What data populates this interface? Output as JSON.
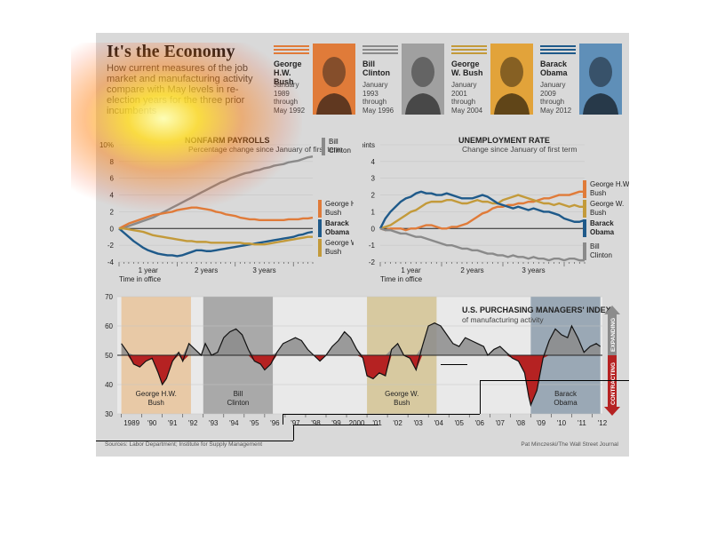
{
  "header": {
    "title": "It's the Economy",
    "subtitle": "How current measures of the job market and manufacturing activity compare with May levels in re-election years for the three prior incumbents"
  },
  "presidents": [
    {
      "name": "George H.W. Bush",
      "dates": "January 1989 through May 1992",
      "color": "#e07b39"
    },
    {
      "name": "Bill Clinton",
      "dates": "January 1993 through May 1996",
      "color": "#8a8a8a"
    },
    {
      "name": "George W. Bush",
      "dates": "January 2001 through May 2004",
      "color": "#c39a3a"
    },
    {
      "name": "Barack Obama",
      "dates": "January 2009 through May 2012",
      "color": "#1f5a8a"
    }
  ],
  "colors": {
    "ghwbush": "#e07b39",
    "clinton": "#8a8a8a",
    "gwbush": "#c39a3a",
    "obama": "#1f5a8a",
    "contract": "#b52222",
    "expand": "#8c8c8c"
  },
  "footer": {
    "sources": "Sources: Labor Department; Institute for Supply Management",
    "credit": "Pat Minczeski/The Wall Street Journal"
  },
  "chart_data": [
    {
      "type": "line",
      "title": "NONFARM PAYROLLS",
      "subtitle": "Percentage change since January of first term",
      "xlabel": "Time in office",
      "x_ticks": [
        "1 year",
        "2 years",
        "3 years"
      ],
      "y_ticks": [
        "10%",
        "8",
        "6",
        "4",
        "2",
        "0",
        "-2",
        "-4"
      ],
      "ylim": [
        -4,
        10
      ],
      "xlim": [
        0,
        40
      ],
      "series": [
        {
          "name": "Bill Clinton",
          "values": [
            0,
            0.1,
            0.3,
            0.5,
            0.7,
            0.9,
            1.1,
            1.3,
            1.6,
            1.9,
            2.2,
            2.5,
            2.8,
            3.1,
            3.4,
            3.7,
            4,
            4.3,
            4.6,
            4.9,
            5.2,
            5.5,
            5.7,
            6,
            6.2,
            6.4,
            6.6,
            6.7,
            6.9,
            7,
            7.2,
            7.3,
            7.5,
            7.6,
            7.7,
            7.9,
            8,
            8.1,
            8.3,
            8.5,
            8.6
          ]
        },
        {
          "name": "George H.W. Bush",
          "values": [
            0,
            0.3,
            0.6,
            0.8,
            1,
            1.2,
            1.4,
            1.6,
            1.7,
            1.8,
            1.9,
            2,
            2.2,
            2.3,
            2.4,
            2.5,
            2.5,
            2.4,
            2.3,
            2.2,
            2,
            1.9,
            1.7,
            1.6,
            1.5,
            1.3,
            1.2,
            1.1,
            1.1,
            1,
            1,
            1,
            1,
            1,
            1,
            1.1,
            1.1,
            1.1,
            1.2,
            1.2,
            1.3
          ]
        },
        {
          "name": "Barack Obama",
          "values": [
            0,
            -0.5,
            -1,
            -1.5,
            -1.9,
            -2.3,
            -2.6,
            -2.8,
            -3,
            -3.1,
            -3.2,
            -3.2,
            -3.3,
            -3.2,
            -3,
            -2.8,
            -2.6,
            -2.6,
            -2.7,
            -2.7,
            -2.6,
            -2.5,
            -2.4,
            -2.3,
            -2.2,
            -2.1,
            -2,
            -1.9,
            -1.8,
            -1.7,
            -1.6,
            -1.5,
            -1.4,
            -1.3,
            -1.2,
            -1.1,
            -1,
            -0.8,
            -0.7,
            -0.5,
            -0.4
          ]
        },
        {
          "name": "George W. Bush",
          "values": [
            0,
            0,
            -0.1,
            -0.2,
            -0.3,
            -0.4,
            -0.6,
            -0.8,
            -0.9,
            -1,
            -1.1,
            -1.2,
            -1.3,
            -1.4,
            -1.5,
            -1.5,
            -1.6,
            -1.6,
            -1.6,
            -1.7,
            -1.7,
            -1.7,
            -1.7,
            -1.7,
            -1.7,
            -1.7,
            -1.8,
            -1.8,
            -1.9,
            -1.9,
            -1.9,
            -1.8,
            -1.7,
            -1.6,
            -1.5,
            -1.4,
            -1.3,
            -1.2,
            -1.1,
            -1,
            -1
          ]
        }
      ]
    },
    {
      "type": "line",
      "title": "UNEMPLOYMENT RATE",
      "subtitle": "Change since January of first term",
      "xlabel": "Time in office",
      "x_ticks": [
        "1 year",
        "2 years",
        "3 years"
      ],
      "y_ticks": [
        "5 percentage points",
        "4",
        "3",
        "2",
        "1",
        "0",
        "-1",
        "-2"
      ],
      "ylim": [
        -2,
        5
      ],
      "xlim": [
        0,
        40
      ],
      "series": [
        {
          "name": "George H.W. Bush",
          "values": [
            0,
            -0.1,
            0,
            0,
            0,
            -0.1,
            0,
            0,
            0.1,
            0.2,
            0.2,
            0.1,
            0,
            0,
            0.1,
            0.1,
            0.2,
            0.3,
            0.5,
            0.7,
            0.9,
            1,
            1.2,
            1.3,
            1.3,
            1.4,
            1.4,
            1.5,
            1.5,
            1.6,
            1.6,
            1.7,
            1.8,
            1.8,
            1.9,
            2,
            2,
            2,
            2.1,
            2.2,
            2.2
          ]
        },
        {
          "name": "George W. Bush",
          "values": [
            0,
            0.1,
            0.2,
            0.4,
            0.6,
            0.8,
            1,
            1.1,
            1.3,
            1.5,
            1.6,
            1.6,
            1.6,
            1.7,
            1.7,
            1.6,
            1.5,
            1.5,
            1.6,
            1.7,
            1.6,
            1.6,
            1.5,
            1.5,
            1.7,
            1.8,
            1.9,
            2,
            1.9,
            1.8,
            1.7,
            1.6,
            1.5,
            1.5,
            1.4,
            1.5,
            1.4,
            1.3,
            1.4,
            1.3,
            1.3
          ]
        },
        {
          "name": "Barack Obama",
          "values": [
            0,
            0.6,
            1,
            1.3,
            1.6,
            1.8,
            1.9,
            2.1,
            2.2,
            2.1,
            2.1,
            2,
            2,
            2.1,
            2,
            1.9,
            1.8,
            1.8,
            1.8,
            1.9,
            2,
            1.9,
            1.7,
            1.5,
            1.4,
            1.3,
            1.2,
            1.3,
            1.2,
            1.1,
            1.2,
            1.1,
            1,
            1,
            0.9,
            0.8,
            0.6,
            0.5,
            0.4,
            0.4,
            0.5
          ]
        },
        {
          "name": "Bill Clinton",
          "values": [
            0,
            -0.1,
            -0.1,
            -0.2,
            -0.3,
            -0.3,
            -0.4,
            -0.5,
            -0.5,
            -0.6,
            -0.7,
            -0.8,
            -0.9,
            -1,
            -1,
            -1.1,
            -1.2,
            -1.2,
            -1.3,
            -1.3,
            -1.4,
            -1.5,
            -1.5,
            -1.6,
            -1.6,
            -1.7,
            -1.6,
            -1.7,
            -1.7,
            -1.8,
            -1.7,
            -1.8,
            -1.8,
            -1.9,
            -1.8,
            -1.8,
            -1.9,
            -1.8,
            -1.8,
            -1.9,
            -1.9
          ]
        }
      ]
    },
    {
      "type": "area",
      "title": "U.S. PURCHASING MANAGERS' INDEX",
      "subtitle": "of manufacturing activity",
      "baseline": 50,
      "ylim": [
        30,
        70
      ],
      "y_ticks": [
        70,
        60,
        50,
        40,
        30
      ],
      "x_labels": [
        "1989",
        "'90",
        "'91",
        "'92",
        "'93",
        "'94",
        "'95",
        "'96",
        "'97",
        "'98",
        "'99",
        "2000",
        "'01",
        "'02",
        "'03",
        "'04",
        "'05",
        "'06",
        "'07",
        "'08",
        "'09",
        "'10",
        "'11",
        "'12"
      ],
      "x_years": [
        1989,
        1990,
        1991,
        1992,
        1993,
        1994,
        1995,
        1996,
        1997,
        1998,
        1999,
        2000,
        2001,
        2002,
        2003,
        2004,
        2005,
        2006,
        2007,
        2008,
        2009,
        2010,
        2011,
        2012
      ],
      "shaded_terms": [
        {
          "label": "George H.W. Bush",
          "start": 1989.0,
          "end": 1992.4,
          "color": "#e8c9a6"
        },
        {
          "label": "Bill Clinton",
          "start": 1993.0,
          "end": 1996.4,
          "color": "#a9a9a9"
        },
        {
          "label": "George W. Bush",
          "start": 2001.0,
          "end": 2004.4,
          "color": "#d7c9a0"
        },
        {
          "label": "Barack Obama",
          "start": 2009.0,
          "end": 2012.4,
          "color": "#9aa8b5"
        }
      ],
      "side_labels": {
        "expanding": "EXPANDING",
        "contracting": "CONTRACTING"
      },
      "points": [
        [
          1989.0,
          54
        ],
        [
          1989.3,
          51
        ],
        [
          1989.6,
          47
        ],
        [
          1989.9,
          46
        ],
        [
          1990.2,
          48
        ],
        [
          1990.5,
          49
        ],
        [
          1990.8,
          44
        ],
        [
          1991.0,
          40
        ],
        [
          1991.2,
          42
        ],
        [
          1991.5,
          48
        ],
        [
          1991.8,
          51
        ],
        [
          1992.0,
          48
        ],
        [
          1992.3,
          54
        ],
        [
          1992.6,
          52
        ],
        [
          1992.9,
          50
        ],
        [
          1993.1,
          54
        ],
        [
          1993.4,
          50
        ],
        [
          1993.7,
          51
        ],
        [
          1994.0,
          56
        ],
        [
          1994.3,
          58
        ],
        [
          1994.6,
          59
        ],
        [
          1994.9,
          57
        ],
        [
          1995.2,
          52
        ],
        [
          1995.5,
          48
        ],
        [
          1995.8,
          47
        ],
        [
          1996.0,
          45
        ],
        [
          1996.3,
          47
        ],
        [
          1996.6,
          51
        ],
        [
          1996.9,
          54
        ],
        [
          1997.2,
          55
        ],
        [
          1997.5,
          56
        ],
        [
          1997.8,
          55
        ],
        [
          1998.1,
          52
        ],
        [
          1998.4,
          50
        ],
        [
          1998.7,
          48
        ],
        [
          1999.0,
          50
        ],
        [
          1999.3,
          53
        ],
        [
          1999.6,
          55
        ],
        [
          1999.9,
          58
        ],
        [
          2000.2,
          56
        ],
        [
          2000.5,
          52
        ],
        [
          2000.8,
          49
        ],
        [
          2001.0,
          43
        ],
        [
          2001.3,
          42
        ],
        [
          2001.6,
          44
        ],
        [
          2001.9,
          43
        ],
        [
          2002.2,
          52
        ],
        [
          2002.5,
          54
        ],
        [
          2002.8,
          50
        ],
        [
          2003.1,
          49
        ],
        [
          2003.4,
          45
        ],
        [
          2003.7,
          53
        ],
        [
          2004.0,
          60
        ],
        [
          2004.3,
          61
        ],
        [
          2004.6,
          60
        ],
        [
          2004.9,
          57
        ],
        [
          2005.2,
          54
        ],
        [
          2005.5,
          53
        ],
        [
          2005.8,
          56
        ],
        [
          2006.1,
          55
        ],
        [
          2006.4,
          54
        ],
        [
          2006.7,
          53
        ],
        [
          2006.9,
          50
        ],
        [
          2007.2,
          52
        ],
        [
          2007.5,
          53
        ],
        [
          2007.8,
          51
        ],
        [
          2008.1,
          49
        ],
        [
          2008.4,
          48
        ],
        [
          2008.7,
          44
        ],
        [
          2008.9,
          36
        ],
        [
          2009.0,
          33
        ],
        [
          2009.3,
          38
        ],
        [
          2009.6,
          49
        ],
        [
          2009.9,
          55
        ],
        [
          2010.2,
          59
        ],
        [
          2010.5,
          57
        ],
        [
          2010.8,
          56
        ],
        [
          2011.0,
          60
        ],
        [
          2011.3,
          56
        ],
        [
          2011.6,
          51
        ],
        [
          2011.9,
          53
        ],
        [
          2012.2,
          54
        ],
        [
          2012.4,
          53
        ]
      ]
    }
  ]
}
